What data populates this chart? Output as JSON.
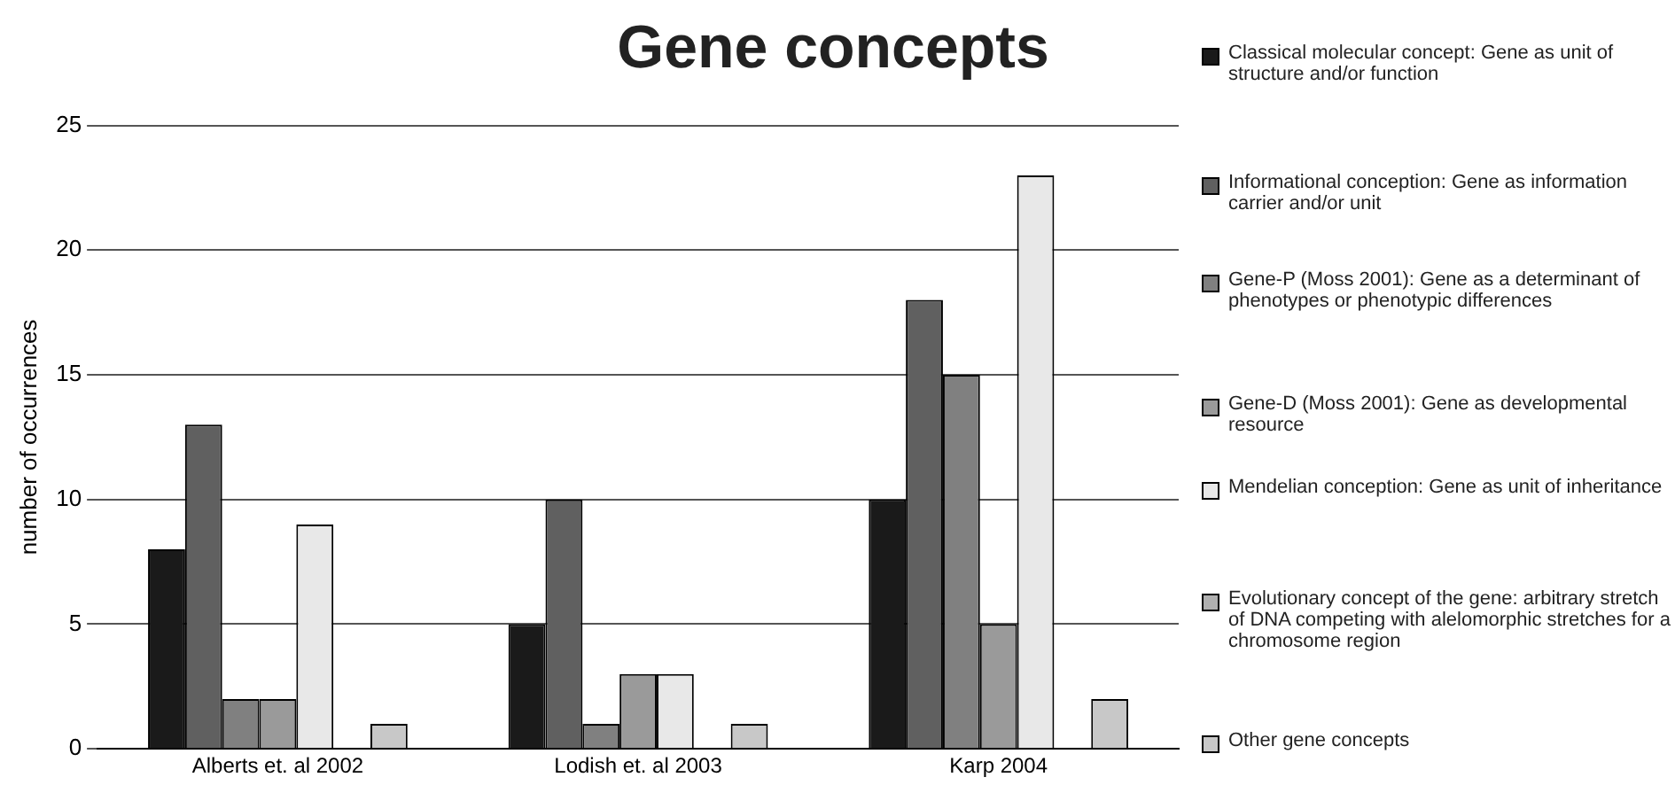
{
  "chart_data": {
    "type": "bar",
    "title": "Gene concepts",
    "ylabel": "number of occurrences",
    "categories": [
      "Alberts et. al 2002",
      "Lodish et. al 2003",
      "Karp 2004"
    ],
    "series": [
      {
        "name": "Classical molecular concept: Gene as unit of structure and/or function",
        "color": "#1a1a1a",
        "values": [
          8,
          5,
          10
        ]
      },
      {
        "name": "Informational conception: Gene as information carrier and/or unit",
        "color": "#606060",
        "values": [
          13,
          10,
          18
        ]
      },
      {
        "name": "Gene-P (Moss 2001): Gene as a determinant of phenotypes or phenotypic differences",
        "color": "#808080",
        "values": [
          2,
          1,
          15
        ]
      },
      {
        "name": "Gene-D (Moss 2001): Gene as developmental resource",
        "color": "#9a9a9a",
        "values": [
          2,
          3,
          5
        ]
      },
      {
        "name": "Mendelian conception: Gene as unit of inheritance",
        "color": "#e8e8e8",
        "values": [
          9,
          3,
          23
        ]
      },
      {
        "name": "Evolutionary concept of the gene: arbitrary stretch of DNA competing with alelomorphic stretches for a chromosome region",
        "color": "#b0b0b0",
        "values": [
          0,
          0,
          0
        ]
      },
      {
        "name": "Other gene concepts",
        "color": "#c8c8c8",
        "values": [
          1,
          1,
          2
        ]
      }
    ],
    "ylim": [
      0,
      25
    ],
    "yticks": [
      0,
      5,
      10,
      15,
      20,
      25
    ],
    "grid": "y",
    "legend": "right"
  }
}
